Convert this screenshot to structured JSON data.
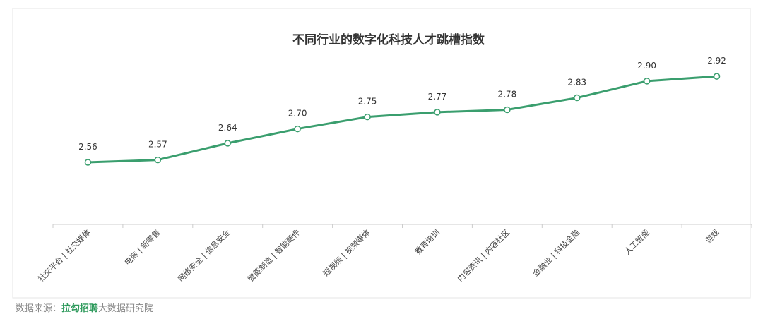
{
  "chart_data": {
    "type": "line",
    "title": "不同行业的数字化科技人才跳槽指数",
    "categories": [
      "社交平台 | 社交媒体",
      "电商 | 新零售",
      "网络安全 | 信息安全",
      "智能制造 | 智能硬件",
      "短视频 | 视频媒体",
      "教育培训",
      "内容资讯 | 内容社区",
      "金融业 | 科技金融",
      "人工智能",
      "游戏"
    ],
    "values": [
      2.56,
      2.57,
      2.64,
      2.7,
      2.75,
      2.77,
      2.78,
      2.83,
      2.9,
      2.92
    ],
    "value_labels": [
      "2.56",
      "2.57",
      "2.64",
      "2.70",
      "2.75",
      "2.77",
      "2.78",
      "2.83",
      "2.90",
      "2.92"
    ],
    "color": "#3a9e6e",
    "ylim": [
      2.3,
      3.0
    ]
  },
  "source": {
    "prefix": "数据来源：",
    "brand": "拉勾招聘",
    "suffix": "大数据研究院"
  }
}
